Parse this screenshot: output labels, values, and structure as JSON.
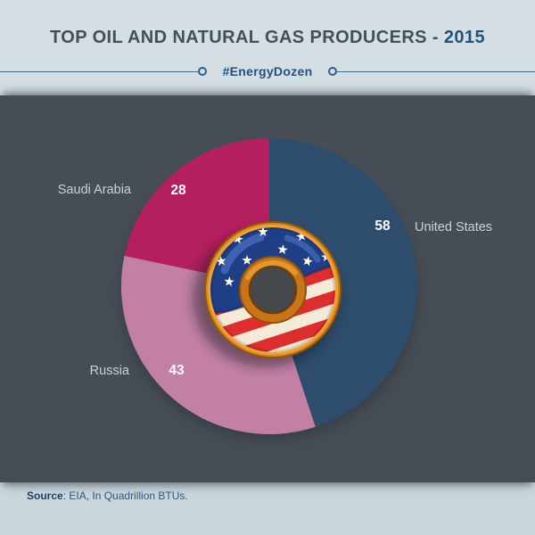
{
  "header": {
    "title_main": "TOP OIL AND NATURAL GAS PRODUCERS - ",
    "title_year": "2015",
    "hashtag": "#EnergyDozen"
  },
  "chart_data": {
    "type": "pie",
    "title": "Top Oil and Natural Gas Producers - 2015",
    "unit": "Quadrillion BTUs",
    "start_angle_deg": 0,
    "direction": "clockwise",
    "legend_position": "labels-on-chart",
    "categories": [
      "United States",
      "Russia",
      "Saudi Arabia"
    ],
    "values": [
      58,
      43,
      28
    ],
    "colors": [
      "#2e4d6d",
      "#c180a4",
      "#b41f5e"
    ],
    "center_icon": "american-flag-donut"
  },
  "footer": {
    "source_label": "Source",
    "source_rest": ": EIA, In Quadrillion BTUs."
  },
  "colors": {
    "header_bg": "#cfdade",
    "panel_bg": "#474d55",
    "accent_navy": "#23507c",
    "title_gray": "#454f58",
    "label_gray": "#ccd1d5",
    "value_white": "#ffffff"
  }
}
